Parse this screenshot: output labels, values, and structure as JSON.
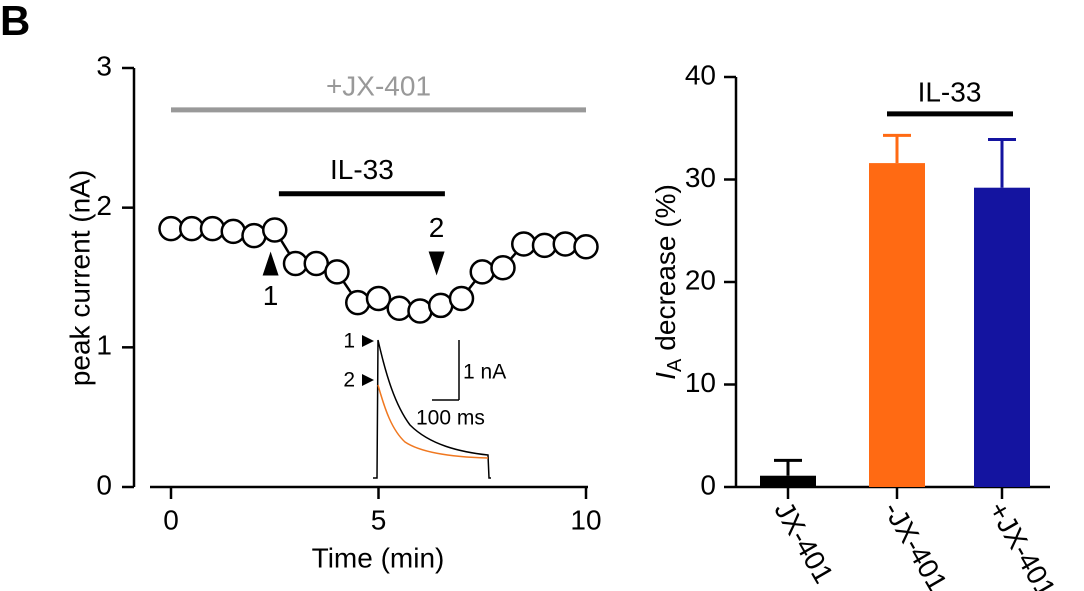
{
  "panel_label": "B",
  "chart_data": [
    {
      "type": "line",
      "xlabel": "Time (min)",
      "ylabel": "peak current (nA)",
      "x": [
        0,
        0.5,
        1,
        1.5,
        2,
        2.5,
        3,
        3.5,
        4,
        4.5,
        5,
        5.5,
        6,
        6.5,
        7,
        7.5,
        8,
        8.5,
        9,
        9.5,
        10
      ],
      "series": [
        {
          "color": "#000000",
          "values": [
            1.85,
            1.85,
            1.85,
            1.83,
            1.8,
            1.84,
            1.6,
            1.6,
            1.54,
            1.32,
            1.35,
            1.28,
            1.26,
            1.3,
            1.35,
            1.54,
            1.57,
            1.74,
            1.73,
            1.74,
            1.72
          ]
        }
      ],
      "xlim": [
        0,
        10
      ],
      "xticks": [
        0,
        5,
        10
      ],
      "ylim": [
        0,
        3
      ],
      "yticks": [
        0,
        1,
        2,
        3
      ],
      "annotations": [
        {
          "text": "+JX-401",
          "x": [
            0,
            10
          ],
          "y": 2.7,
          "color": "#999999"
        },
        {
          "text": "IL-33",
          "x": [
            2.6,
            6.6
          ],
          "y": 2.1,
          "color": "#000000"
        }
      ],
      "markers": [
        {
          "label": "1",
          "x": 2.4,
          "y": 1.6,
          "direction": "up"
        },
        {
          "label": "2",
          "x": 6.4,
          "y": 1.6,
          "direction": "down"
        }
      ],
      "inset": {
        "trace_labels": [
          "1",
          "2"
        ],
        "scale_y": "1 nA",
        "scale_x": "100 ms",
        "colors": [
          "#000000",
          "#f07820"
        ]
      }
    },
    {
      "type": "bar",
      "ylabel": {
        "symbol": "I",
        "subscript": "A",
        "text": "decrease (%)"
      },
      "categories": [
        "JX-401",
        "-JX-401",
        "+JX-401"
      ],
      "values": [
        1.1,
        31.6,
        29.2
      ],
      "errors": [
        1.5,
        2.7,
        4.7
      ],
      "colors": [
        "#000000",
        "#ff6a13",
        "#1414a0"
      ],
      "ylim": [
        0,
        40
      ],
      "yticks": [
        0,
        10,
        20,
        30,
        40
      ],
      "annotations": [
        {
          "text": "IL-33",
          "y": 36.4
        }
      ]
    }
  ]
}
